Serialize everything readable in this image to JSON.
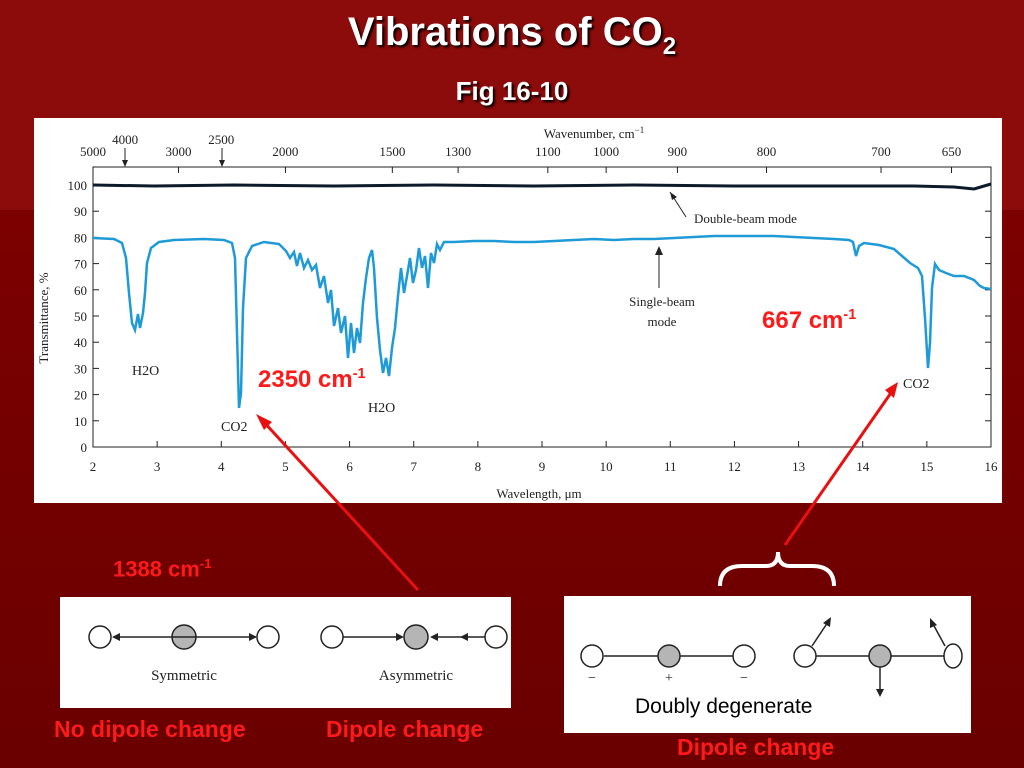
{
  "slide": {
    "title_main": "Vibrations of CO",
    "title_sub": "2",
    "subtitle": "Fig 16-10"
  },
  "spectrum": {
    "top_axis_label": "Wavenumber, cm",
    "top_axis_label_exp": "−1",
    "bottom_axis_label": "Wavelength, μm",
    "y_axis_label": "Transmittance, %",
    "top_ticks": [
      "5000",
      "3000",
      "2000",
      "1500",
      "1300",
      "1100",
      "1000",
      "900",
      "800",
      "700",
      "650"
    ],
    "top_extra_ticks": [
      "4000",
      "2500"
    ],
    "bottom_ticks": [
      "2",
      "3",
      "4",
      "5",
      "6",
      "7",
      "8",
      "9",
      "10",
      "11",
      "12",
      "13",
      "14",
      "15",
      "16"
    ],
    "y_ticks": [
      "0",
      "10",
      "20",
      "30",
      "40",
      "50",
      "60",
      "70",
      "80",
      "90",
      "100"
    ],
    "double_beam_label": "Double-beam mode",
    "single_beam_label_1": "Single-beam",
    "single_beam_label_2": "mode",
    "peak_labels": {
      "h2o_a": "H2O",
      "co2_a": "CO2",
      "h2o_b": "H2O",
      "co2_b": "CO2"
    },
    "colors": {
      "single_beam": "#1e9ad6",
      "double_beam": "#0d1a2a"
    }
  },
  "annotations": {
    "peak_2350": {
      "text": "2350 cm",
      "exp": "-1"
    },
    "peak_667": {
      "text": "667 cm",
      "exp": "-1"
    },
    "peak_1388": {
      "text": "1388 cm",
      "exp": "-1"
    }
  },
  "stretch_panel": {
    "symmetric_label": "Symmetric",
    "asymmetric_label": "Asymmetric",
    "no_dipole_label": "No dipole change",
    "dipole_label": "Dipole change"
  },
  "bend_panel": {
    "minus_1": "−",
    "plus": "+",
    "minus_2": "−",
    "doubly_degenerate": "Doubly degenerate",
    "dipole_label": "Dipole change"
  },
  "colors": {
    "accent_red": "#ff1a1a",
    "arrow_red": "#e81010",
    "slide_bg": "#7a0000"
  }
}
